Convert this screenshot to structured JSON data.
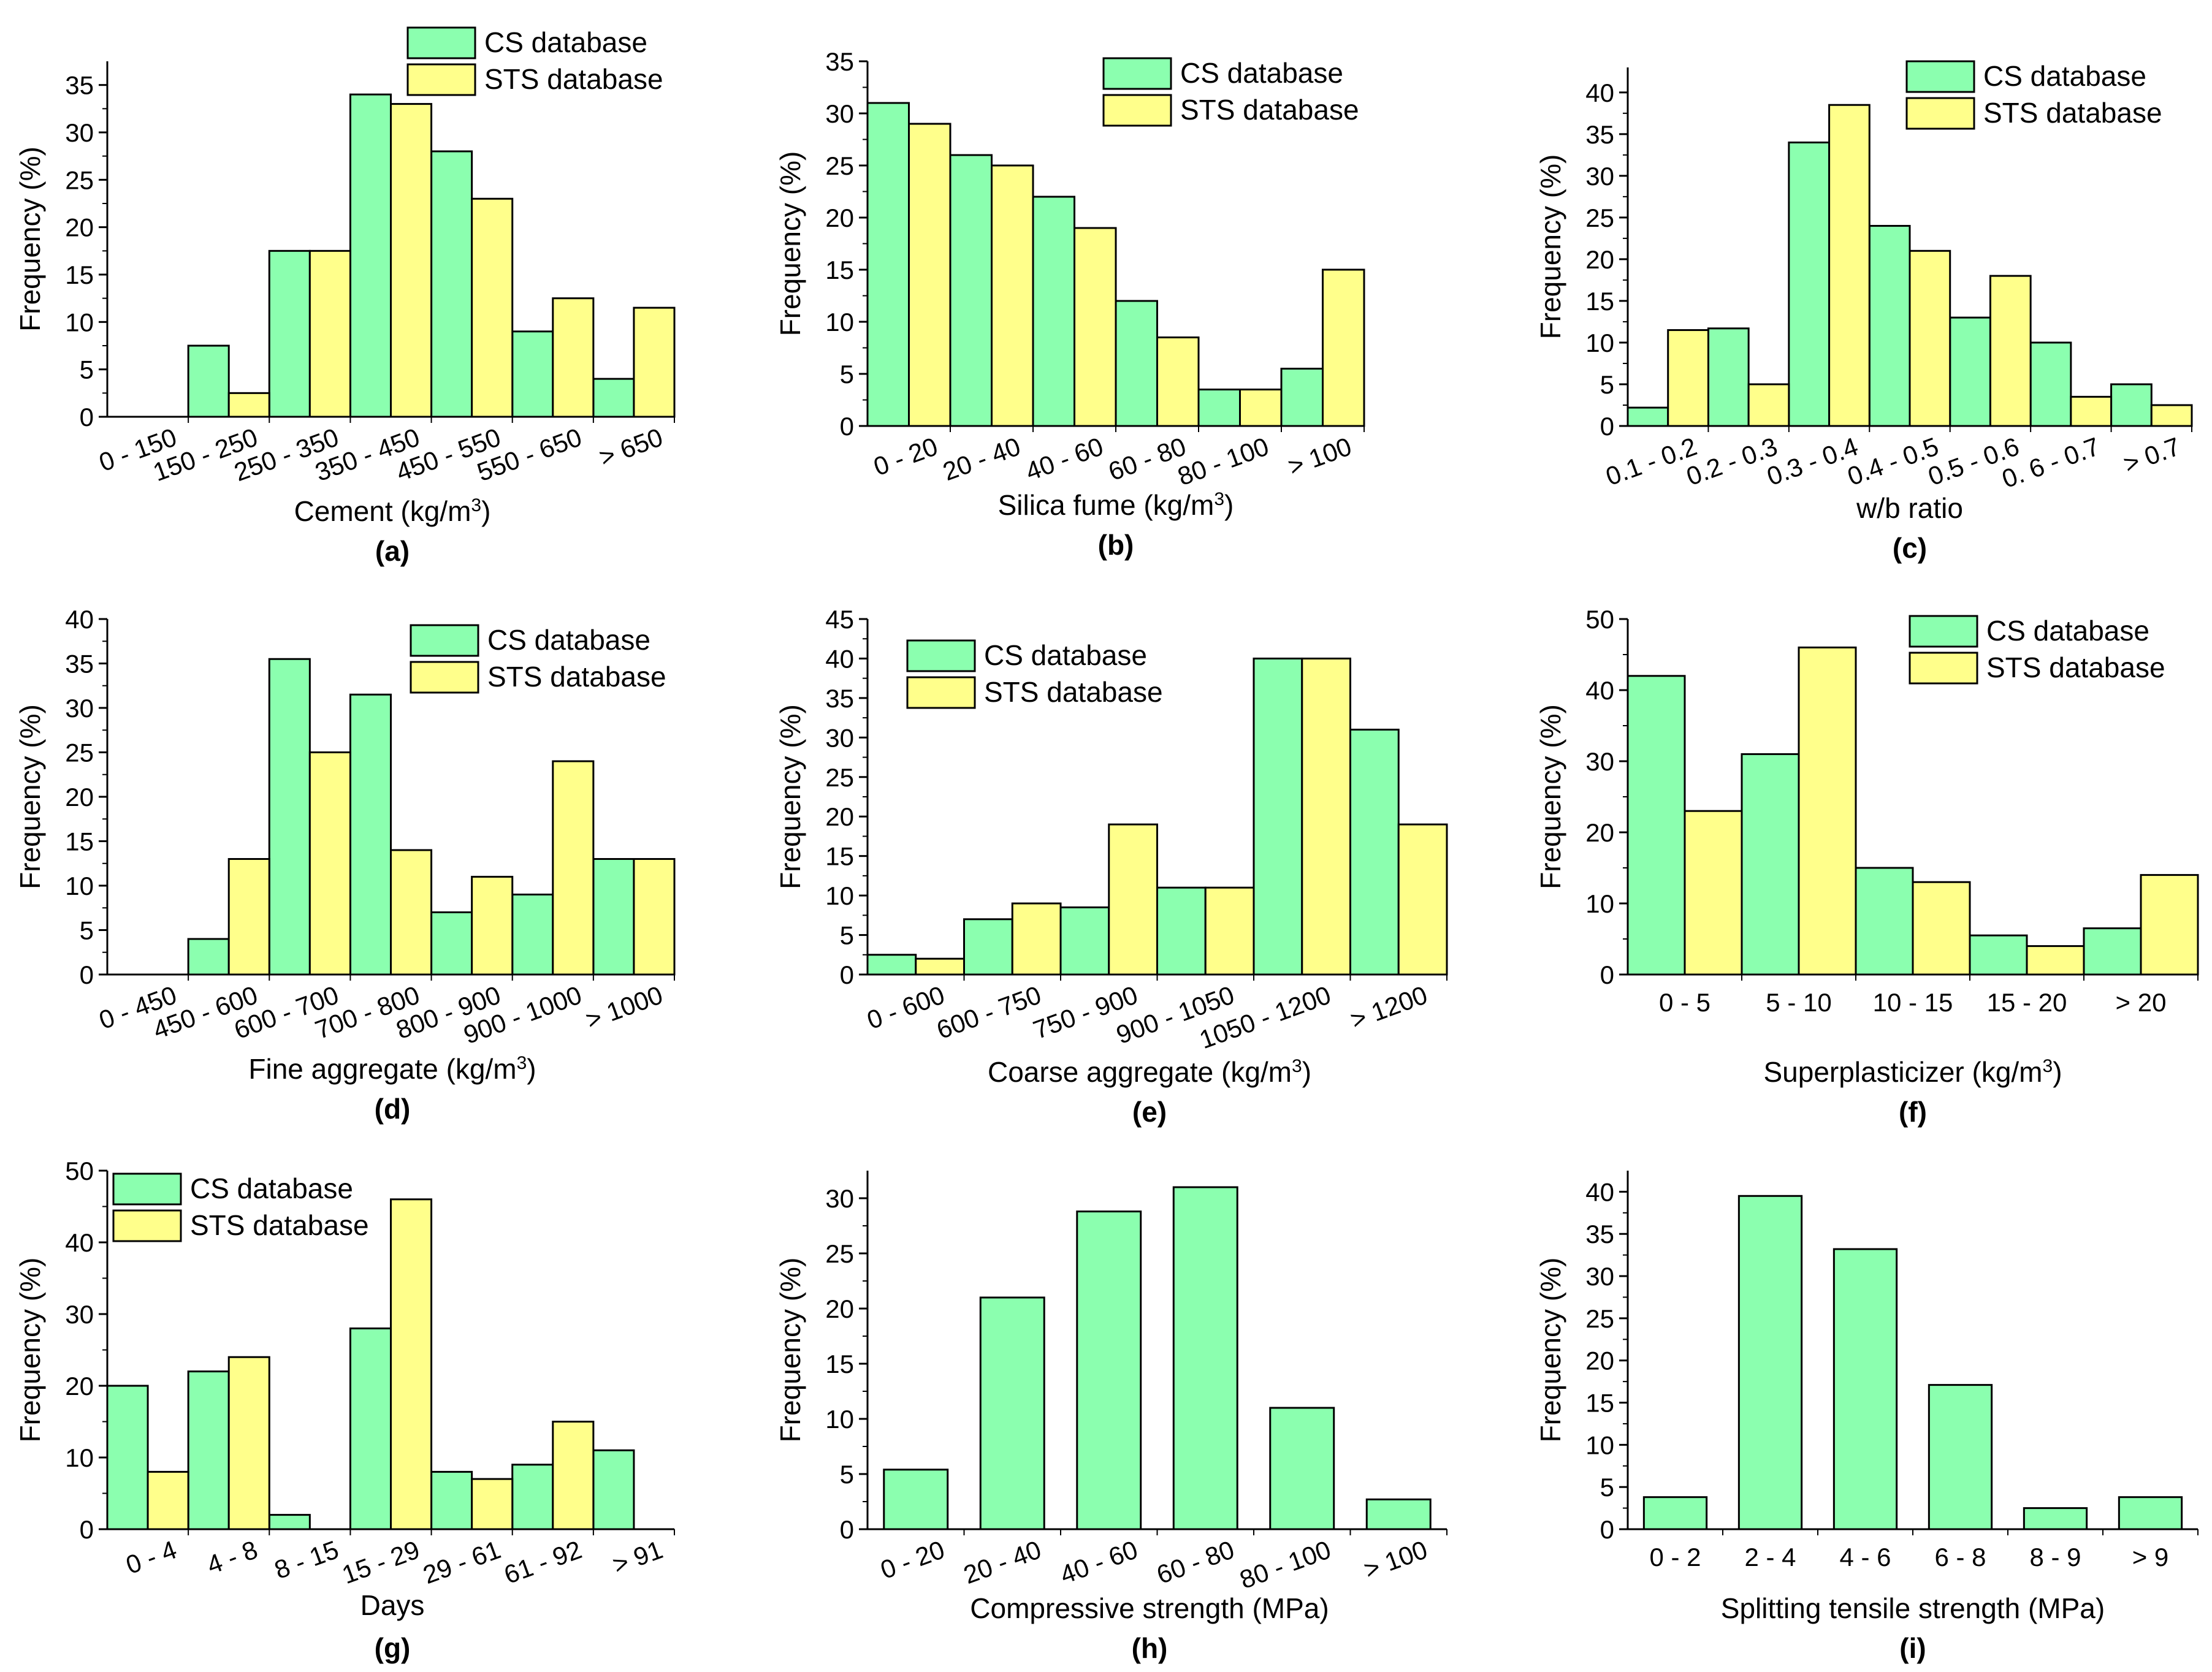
{
  "colors": {
    "cs": "#8bffaf",
    "sts": "#ffff8b",
    "stroke": "#000000"
  },
  "chart_data": [
    {
      "type": "bar",
      "panel": "(a)",
      "xlabel": "Cement (kg/m",
      "xlabel_sup": "3",
      "xlabel_tail": ")",
      "ylabel": "Frequency (%)",
      "ylim": [
        0,
        37.5
      ],
      "yticks": [
        0,
        5,
        10,
        15,
        20,
        25,
        30,
        35
      ],
      "categories": [
        "0 - 150",
        "150 - 250",
        "250 - 350",
        "350 - 450",
        "450 - 550",
        "550 - 650",
        "> 650"
      ],
      "series": [
        {
          "name": "CS database",
          "values": [
            0,
            7.5,
            17.5,
            34,
            28,
            9,
            4
          ]
        },
        {
          "name": "STS database",
          "values": [
            0,
            2.5,
            17.5,
            33,
            23,
            12.5,
            11.5
          ]
        }
      ],
      "legend": [
        "CS database",
        "STS database"
      ],
      "legend_position": "top-right",
      "rotate_ticks": true
    },
    {
      "type": "bar",
      "panel": "(b)",
      "xlabel": "Silica fume (kg/m",
      "xlabel_sup": "3",
      "xlabel_tail": ")",
      "ylabel": "Frequency (%)",
      "ylim": [
        0,
        35
      ],
      "yticks": [
        0,
        5,
        10,
        15,
        20,
        25,
        30,
        35
      ],
      "categories": [
        "0 - 20",
        "20 - 40",
        "40 - 60",
        "60 - 80",
        "80 - 100",
        "> 100"
      ],
      "series": [
        {
          "name": "CS database",
          "values": [
            31,
            26,
            22,
            12,
            3.5,
            5.5
          ]
        },
        {
          "name": "STS database",
          "values": [
            29,
            25,
            19,
            8.5,
            3.5,
            15
          ]
        }
      ],
      "legend": [
        "CS database",
        "STS database"
      ],
      "legend_position": "top-right",
      "rotate_ticks": true
    },
    {
      "type": "bar",
      "panel": "(c)",
      "xlabel": "w/b ratio",
      "xlabel_sup": "",
      "xlabel_tail": "",
      "ylabel": "Frequency (%)",
      "ylim": [
        0,
        43
      ],
      "yticks": [
        0,
        5,
        10,
        15,
        20,
        25,
        30,
        35,
        40
      ],
      "categories": [
        "0.1 - 0.2",
        "0.2 - 0.3",
        "0.3 - 0.4",
        "0.4 - 0.5",
        "0.5 - 0.6",
        "0. 6 - 0.7",
        "> 0.7"
      ],
      "series": [
        {
          "name": "CS database",
          "values": [
            2.2,
            11.7,
            34,
            24,
            13,
            10,
            5
          ]
        },
        {
          "name": "STS database",
          "values": [
            11.5,
            5,
            38.5,
            21,
            18,
            3.5,
            2.5
          ]
        }
      ],
      "legend": [
        "CS database",
        "STS database"
      ],
      "legend_position": "top-right",
      "rotate_ticks": true
    },
    {
      "type": "bar",
      "panel": "(d)",
      "xlabel": "Fine aggregate (kg/m",
      "xlabel_sup": "3",
      "xlabel_tail": ")",
      "ylabel": "Frequency (%)",
      "ylim": [
        0,
        40
      ],
      "yticks": [
        0,
        5,
        10,
        15,
        20,
        25,
        30,
        35,
        40
      ],
      "categories": [
        "0 - 450",
        "450 - 600",
        "600 - 700",
        "700 - 800",
        "800 - 900",
        "900 - 1000",
        "> 1000"
      ],
      "series": [
        {
          "name": "CS database",
          "values": [
            0,
            4,
            35.5,
            31.5,
            7,
            9,
            13
          ]
        },
        {
          "name": "STS database",
          "values": [
            0,
            13,
            25,
            14,
            11,
            24,
            13
          ]
        }
      ],
      "legend": [
        "CS database",
        "STS database"
      ],
      "legend_position": "top-right",
      "rotate_ticks": true
    },
    {
      "type": "bar",
      "panel": "(e)",
      "xlabel": "Coarse aggregate (kg/m",
      "xlabel_sup": "3",
      "xlabel_tail": ")",
      "ylabel": "Frequency (%)",
      "ylim": [
        0,
        45
      ],
      "yticks": [
        0,
        5,
        10,
        15,
        20,
        25,
        30,
        35,
        40,
        45
      ],
      "categories": [
        "0 - 600",
        "600 - 750",
        "750 - 900",
        "900 - 1050",
        "1050 - 1200",
        "> 1200"
      ],
      "series": [
        {
          "name": "CS database",
          "values": [
            2.5,
            7,
            8.5,
            11,
            40,
            31
          ]
        },
        {
          "name": "STS database",
          "values": [
            2,
            9,
            19,
            11,
            40,
            19
          ]
        }
      ],
      "legend": [
        "CS database",
        "STS database"
      ],
      "legend_position": "top-left",
      "rotate_ticks": true
    },
    {
      "type": "bar",
      "panel": "(f)",
      "xlabel": "Superplasticizer (kg/m",
      "xlabel_sup": "3",
      "xlabel_tail": ")",
      "ylabel": "Frequency (%)",
      "ylim": [
        0,
        50
      ],
      "yticks": [
        0,
        10,
        20,
        30,
        40,
        50
      ],
      "categories": [
        "0 - 5",
        "5 - 10",
        "10 - 15",
        "15 - 20",
        "> 20"
      ],
      "series": [
        {
          "name": "CS database",
          "values": [
            42,
            31,
            15,
            5.5,
            6.5
          ]
        },
        {
          "name": "STS database",
          "values": [
            23,
            46,
            13,
            4,
            14
          ]
        }
      ],
      "legend": [
        "CS database",
        "STS database"
      ],
      "legend_position": "top-right",
      "rotate_ticks": false
    },
    {
      "type": "bar",
      "panel": "(g)",
      "xlabel": "Days",
      "xlabel_sup": "",
      "xlabel_tail": "",
      "ylabel": "Frequency (%)",
      "ylim": [
        0,
        50
      ],
      "yticks": [
        0,
        10,
        20,
        30,
        40,
        50
      ],
      "categories": [
        "0 - 4",
        "4 - 8",
        "8 - 15",
        "15 - 29",
        "29 - 61",
        "61 - 92",
        "> 91"
      ],
      "series": [
        {
          "name": "CS database",
          "values": [
            20,
            22,
            2,
            28,
            8,
            9,
            11
          ]
        },
        {
          "name": "STS database",
          "values": [
            8,
            24,
            0,
            46,
            7,
            15,
            0
          ]
        }
      ],
      "legend": [
        "CS database",
        "STS database"
      ],
      "legend_position": "top-left",
      "rotate_ticks": true
    },
    {
      "type": "bar",
      "panel": "(h)",
      "xlabel": "Compressive strength (MPa)",
      "xlabel_sup": "",
      "xlabel_tail": "",
      "ylabel": "Frequency (%)",
      "ylim": [
        0,
        32.5
      ],
      "yticks": [
        0,
        5,
        10,
        15,
        20,
        25,
        30
      ],
      "categories": [
        "0 - 20",
        "20 - 40",
        "40 - 60",
        "60 - 80",
        "80 - 100",
        "> 100"
      ],
      "series": [
        {
          "name": "CS database",
          "values": [
            5.4,
            21,
            28.8,
            31,
            11,
            2.7
          ]
        }
      ],
      "legend": [],
      "legend_position": "none",
      "rotate_ticks": true
    },
    {
      "type": "bar",
      "panel": "(i)",
      "xlabel": "Splitting tensile strength (MPa)",
      "xlabel_sup": "",
      "xlabel_tail": "",
      "ylabel": "Frequency (%)",
      "ylim": [
        0,
        42.5
      ],
      "yticks": [
        0,
        5,
        10,
        15,
        20,
        25,
        30,
        35,
        40
      ],
      "categories": [
        "0 - 2",
        "2 - 4",
        "4 - 6",
        "6 - 8",
        "8 - 9",
        "> 9"
      ],
      "series": [
        {
          "name": "STS database",
          "values": [
            3.8,
            39.5,
            33.2,
            17.1,
            2.5,
            3.8
          ]
        }
      ],
      "series_color_override": "cs",
      "legend": [],
      "legend_position": "none",
      "rotate_ticks": false
    }
  ]
}
